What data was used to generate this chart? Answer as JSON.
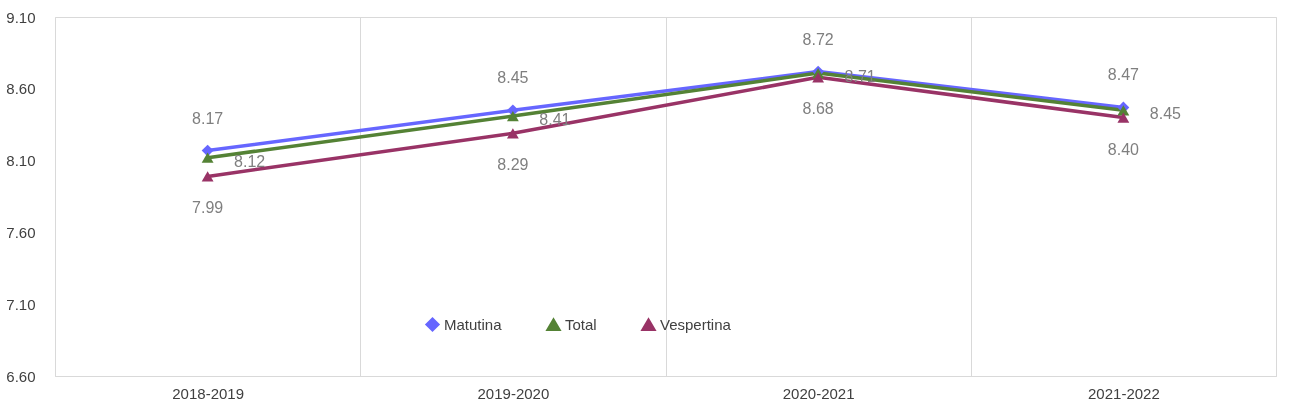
{
  "chart_data": {
    "type": "line",
    "categories": [
      "2018-2019",
      "2019-2020",
      "2020-2021",
      "2021-2022"
    ],
    "series": [
      {
        "name": "Matutina",
        "color": "#6666ff",
        "marker": "diamond",
        "values": [
          8.17,
          8.45,
          8.72,
          8.47
        ],
        "value_labels": [
          "8.17",
          "8.45",
          "8.72",
          "8.47"
        ]
      },
      {
        "name": "Total",
        "color": "#548235",
        "marker": "triangle",
        "values": [
          8.12,
          8.41,
          8.71,
          8.45
        ],
        "value_labels": [
          "8.12",
          "8.41",
          "8.71",
          "8.45"
        ]
      },
      {
        "name": "Vespertina",
        "color": "#993366",
        "marker": "triangle",
        "values": [
          7.99,
          8.29,
          8.68,
          8.4
        ],
        "value_labels": [
          "7.99",
          "8.29",
          "8.68",
          "8.40"
        ]
      }
    ],
    "ylim": [
      6.6,
      9.1
    ],
    "yticks": [
      {
        "value": 6.6,
        "label": "6.60"
      },
      {
        "value": 7.1,
        "label": "7.10"
      },
      {
        "value": 7.6,
        "label": "7.60"
      },
      {
        "value": 8.1,
        "label": "8.10"
      },
      {
        "value": 8.6,
        "label": "8.60"
      },
      {
        "value": 9.1,
        "label": "9.10"
      }
    ],
    "grid": "x",
    "legend": "bottom",
    "line_style": "solid"
  }
}
